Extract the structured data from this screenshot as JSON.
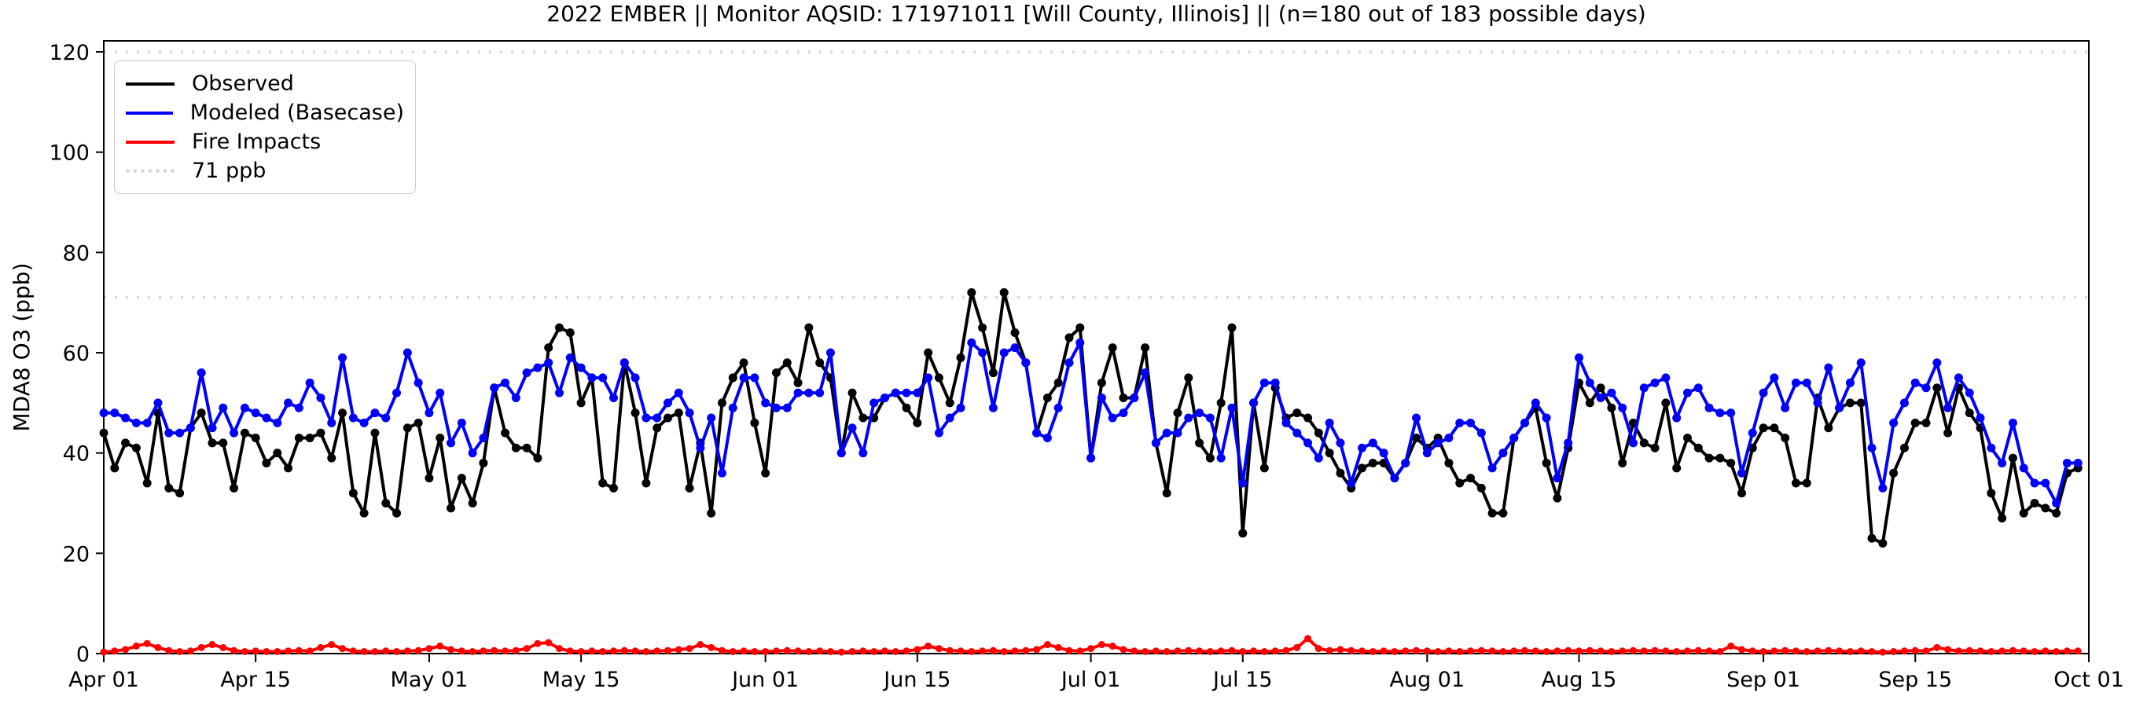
{
  "title": "2022 EMBER || Monitor AQSID: 171971011 [Will County, Illinois] || (n=180 out of 183 possible days)",
  "axes": {
    "ylabel": "MDA8 O3 (ppb)",
    "xlabel": ""
  },
  "legend": {
    "items": [
      {
        "label": "Observed",
        "color": "#000000",
        "line": "solid"
      },
      {
        "label": "Modeled (Basecase)",
        "color": "#0000ff",
        "line": "solid"
      },
      {
        "label": "Fire Impacts",
        "color": "#ff0000",
        "line": "solid"
      },
      {
        "label": "71 ppb",
        "color": "#d9d9d9",
        "line": "dotted"
      }
    ]
  },
  "chart_data": {
    "type": "line",
    "title": "2022 EMBER || Monitor AQSID: 171971011 [Will County, Illinois] || (n=180 out of 183 possible days)",
    "xlabel": "",
    "ylabel": "MDA8 O3 (ppb)",
    "ylim": [
      0,
      122.2
    ],
    "yticks": [
      0,
      20,
      40,
      60,
      80,
      100,
      120
    ],
    "grid": false,
    "legend_position": "upper left",
    "x_unit": "day index from Apr 01 2022",
    "x_days_total": 183,
    "xticks": [
      {
        "day": 0,
        "label": "Apr 01"
      },
      {
        "day": 14,
        "label": "Apr 15"
      },
      {
        "day": 30,
        "label": "May 01"
      },
      {
        "day": 44,
        "label": "May 15"
      },
      {
        "day": 61,
        "label": "Jun 01"
      },
      {
        "day": 75,
        "label": "Jun 15"
      },
      {
        "day": 91,
        "label": "Jul 01"
      },
      {
        "day": 105,
        "label": "Jul 15"
      },
      {
        "day": 122,
        "label": "Aug 01"
      },
      {
        "day": 136,
        "label": "Aug 15"
      },
      {
        "day": 153,
        "label": "Sep 01"
      },
      {
        "day": 167,
        "label": "Sep 15"
      },
      {
        "day": 183,
        "label": "Oct 01"
      }
    ],
    "reference_lines": [
      {
        "value": 71,
        "label": "71 ppb",
        "style": "dotted",
        "color": "#d9d9d9"
      },
      {
        "value": 120,
        "label": "",
        "style": "dotted",
        "color": "#d9d9d9"
      }
    ],
    "series": [
      {
        "name": "Observed",
        "color": "#000000",
        "marker": "circle",
        "marker_r": 5.5,
        "line_width": 4,
        "values": [
          44,
          37,
          42,
          41,
          34,
          48,
          33,
          32,
          45,
          48,
          42,
          42,
          33,
          44,
          43,
          38,
          40,
          37,
          43,
          43,
          44,
          39,
          48,
          32,
          28,
          44,
          30,
          28,
          45,
          46,
          35,
          43,
          29,
          35,
          30,
          38,
          53,
          44,
          41,
          41,
          39,
          61,
          65,
          64,
          50,
          55,
          34,
          33,
          58,
          48,
          34,
          45,
          47,
          48,
          33,
          42,
          28,
          50,
          55,
          58,
          46,
          36,
          56,
          58,
          54,
          65,
          58,
          55,
          40,
          52,
          47,
          47,
          51,
          52,
          49,
          46,
          60,
          55,
          50,
          59,
          72,
          65,
          56,
          72,
          64,
          58,
          44,
          51,
          54,
          63,
          65,
          39,
          54,
          61,
          51,
          51,
          61,
          42,
          32,
          48,
          55,
          42,
          39,
          50,
          65,
          24,
          50,
          37,
          53,
          47,
          48,
          47,
          44,
          40,
          36,
          33,
          37,
          38,
          38,
          35,
          38,
          43,
          41,
          43,
          38,
          34,
          35,
          33,
          28,
          28,
          43,
          46,
          49,
          38,
          31,
          41,
          54,
          50,
          53,
          49,
          38,
          46,
          42,
          41,
          50,
          37,
          43,
          41,
          39,
          39,
          38,
          32,
          41,
          45,
          45,
          43,
          34,
          34,
          51,
          45,
          49,
          50,
          50,
          23,
          22,
          36,
          41,
          46,
          46,
          53,
          44,
          53,
          48,
          45,
          32,
          27,
          39,
          28,
          30,
          29,
          28,
          36,
          37
        ]
      },
      {
        "name": "Modeled (Basecase)",
        "color": "#0000ff",
        "marker": "circle",
        "marker_r": 5.5,
        "line_width": 4,
        "values": [
          48,
          48,
          47,
          46,
          46,
          50,
          44,
          44,
          45,
          56,
          45,
          49,
          44,
          49,
          48,
          47,
          46,
          50,
          49,
          54,
          51,
          46,
          59,
          47,
          46,
          48,
          47,
          52,
          60,
          54,
          48,
          52,
          42,
          46,
          40,
          43,
          53,
          54,
          51,
          56,
          57,
          58,
          52,
          59,
          57,
          55,
          55,
          51,
          58,
          55,
          47,
          47,
          50,
          52,
          48,
          41,
          47,
          36,
          49,
          55,
          55,
          50,
          49,
          49,
          52,
          52,
          52,
          60,
          40,
          45,
          40,
          50,
          51,
          52,
          52,
          52,
          55,
          44,
          47,
          49,
          62,
          60,
          49,
          60,
          61,
          58,
          44,
          43,
          49,
          58,
          62,
          39,
          51,
          47,
          48,
          51,
          56,
          42,
          44,
          44,
          47,
          48,
          47,
          39,
          49,
          34,
          50,
          54,
          54,
          46,
          44,
          42,
          39,
          46,
          42,
          34,
          41,
          42,
          40,
          35,
          38,
          47,
          40,
          42,
          43,
          46,
          46,
          44,
          37,
          40,
          43,
          46,
          50,
          47,
          35,
          42,
          59,
          54,
          51,
          52,
          49,
          42,
          53,
          54,
          55,
          47,
          52,
          53,
          49,
          48,
          48,
          36,
          44,
          52,
          55,
          49,
          54,
          54,
          50,
          57,
          49,
          54,
          58,
          41,
          33,
          46,
          50,
          54,
          53,
          58,
          49,
          55,
          52,
          47,
          41,
          38,
          46,
          37,
          34,
          34,
          30,
          38,
          38
        ]
      },
      {
        "name": "Fire Impacts",
        "color": "#ff0000",
        "marker": "circle",
        "marker_r": 4.5,
        "line_width": 4,
        "values": [
          0.3,
          0.5,
          0.8,
          1.5,
          2.0,
          1.2,
          0.6,
          0.4,
          0.5,
          1.2,
          1.8,
          1.2,
          0.6,
          0.4,
          0.5,
          0.4,
          0.4,
          0.5,
          0.6,
          0.5,
          1.2,
          1.8,
          1.0,
          0.5,
          0.4,
          0.4,
          0.5,
          0.4,
          0.5,
          0.6,
          1.0,
          1.5,
          0.8,
          0.5,
          0.4,
          0.5,
          0.6,
          0.5,
          0.6,
          1.0,
          2.0,
          2.2,
          1.0,
          0.5,
          0.4,
          0.5,
          0.4,
          0.5,
          0.6,
          0.5,
          0.4,
          0.5,
          0.6,
          0.8,
          1.0,
          1.8,
          1.2,
          0.6,
          0.4,
          0.5,
          0.4,
          0.4,
          0.5,
          0.6,
          0.5,
          0.4,
          0.5,
          0.4,
          0.3,
          0.4,
          0.5,
          0.4,
          0.5,
          0.4,
          0.5,
          0.8,
          1.5,
          1.0,
          0.6,
          0.5,
          0.4,
          0.5,
          0.6,
          0.4,
          0.5,
          0.6,
          0.8,
          1.8,
          1.2,
          0.6,
          0.5,
          1.0,
          1.8,
          1.5,
          0.8,
          0.5,
          0.4,
          0.5,
          0.4,
          0.5,
          0.6,
          0.5,
          0.4,
          0.5,
          0.6,
          0.4,
          0.5,
          0.4,
          0.5,
          0.6,
          1.2,
          3.0,
          1.0,
          0.6,
          0.8,
          0.6,
          0.5,
          0.4,
          0.5,
          0.4,
          0.5,
          0.6,
          0.5,
          0.4,
          0.5,
          0.4,
          0.5,
          0.6,
          0.5,
          0.4,
          0.5,
          0.6,
          0.5,
          0.4,
          0.5,
          0.6,
          0.5,
          0.6,
          0.5,
          0.4,
          0.5,
          0.6,
          0.5,
          0.6,
          0.5,
          0.4,
          0.5,
          0.6,
          0.5,
          0.4,
          1.5,
          0.8,
          0.5,
          0.4,
          0.5,
          0.6,
          0.5,
          0.4,
          0.5,
          0.6,
          0.5,
          0.4,
          0.5,
          0.4,
          0.3,
          0.4,
          0.5,
          0.6,
          0.5,
          1.2,
          0.8,
          0.5,
          0.6,
          0.5,
          0.4,
          0.5,
          0.6,
          0.5,
          0.4,
          0.5,
          0.4,
          0.5,
          0.5
        ]
      }
    ]
  }
}
